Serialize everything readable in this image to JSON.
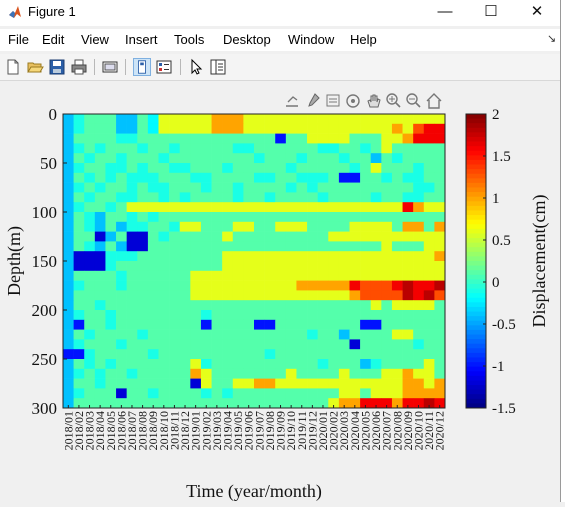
{
  "window": {
    "title": "Figure 1",
    "minimize_icon": "minimize-icon",
    "maximize_icon": "maximize-icon",
    "close_icon": "close-icon"
  },
  "menu": [
    "File",
    "Edit",
    "View",
    "Insert",
    "Tools",
    "Desktop",
    "Window",
    "Help"
  ],
  "toolbar": [
    "new-figure-icon",
    "open-file-icon",
    "save-icon",
    "print-icon",
    "link-plot-icon",
    "plot-tools-on-icon",
    "plot-tools-off-icon",
    "pointer-icon",
    "property-inspector-icon"
  ],
  "axes_toolbar": [
    "export-icon",
    "brush-icon",
    "data-tips-icon",
    "rotate-3d-icon",
    "pan-icon",
    "zoom-in-icon",
    "zoom-out-icon",
    "home-icon"
  ],
  "chart_data": {
    "type": "heatmap",
    "xlabel": "Time (year/month)",
    "ylabel": "Depth(m)",
    "colorbar_label": "Displacement(cm)",
    "colormap": "jet",
    "clim": [
      -1.5,
      2
    ],
    "colorbar_ticks": [
      2,
      1.5,
      1,
      0.5,
      0,
      -0.5,
      -1,
      -1.5
    ],
    "y_ticks": [
      0,
      50,
      100,
      150,
      200,
      250,
      300
    ],
    "ylim": [
      0,
      300
    ],
    "x_tick_labels": [
      "2018/01",
      "2018/02",
      "2018/03",
      "2018/04",
      "2018/05",
      "2018/06",
      "2018/07",
      "2018/08",
      "2018/09",
      "2018/10",
      "2018/11",
      "2018/12",
      "2019/01",
      "2019/02",
      "2019/03",
      "2019/04",
      "2019/05",
      "2019/06",
      "2019/07",
      "2019/08",
      "2019/09",
      "2019/10",
      "2019/11",
      "2019/12",
      "2020/01",
      "2020/02",
      "2020/03",
      "2020/04",
      "2020/05",
      "2020/06",
      "2020/07",
      "2020/08",
      "2020/09",
      "2020/10",
      "2020/11",
      "2020/12"
    ],
    "depths": [
      0,
      10,
      20,
      30,
      40,
      50,
      60,
      70,
      80,
      90,
      100,
      110,
      120,
      130,
      140,
      150,
      160,
      170,
      180,
      190,
      200,
      210,
      220,
      230,
      240,
      250,
      260,
      270,
      280,
      290
    ],
    "values": [
      [
        -0.4,
        -0.1,
        0.1,
        0.1,
        0.1,
        -0.4,
        -0.4,
        0.1,
        -0.2,
        0.6,
        0.6,
        0.6,
        0.6,
        0.6,
        1.0,
        1.0,
        1.0,
        0.6,
        0.6,
        0.6,
        0.6,
        0.6,
        0.6,
        0.6,
        0.6,
        0.6,
        0.6,
        0.6,
        0.6,
        0.6,
        0.6,
        0.6,
        0.6,
        0.6,
        0.6,
        0.6
      ],
      [
        -0.4,
        -0.1,
        0.1,
        0.1,
        0.1,
        -0.4,
        -0.4,
        0.1,
        -0.2,
        0.6,
        0.6,
        0.6,
        0.6,
        0.6,
        1.0,
        1.0,
        1.0,
        0.6,
        0.6,
        0.6,
        0.6,
        0.6,
        0.6,
        0.6,
        0.6,
        0.6,
        0.6,
        0.6,
        0.6,
        0.6,
        0.6,
        1.0,
        0.6,
        1.3,
        1.6,
        1.6
      ],
      [
        -0.4,
        0.1,
        0.1,
        0.1,
        0.1,
        -0.1,
        -0.1,
        0.1,
        0.1,
        0.1,
        0.1,
        0.1,
        0.1,
        0.1,
        0.1,
        0.1,
        0.1,
        0.1,
        0.1,
        0.1,
        -1.0,
        0.1,
        0.1,
        0.6,
        0.6,
        0.6,
        0.6,
        0.1,
        0.1,
        0.1,
        0.6,
        0.6,
        1.0,
        1.6,
        1.6,
        1.6
      ],
      [
        -0.4,
        -0.1,
        0.1,
        -0.1,
        0.1,
        0.1,
        0.1,
        -0.1,
        0.1,
        0.1,
        -0.1,
        0.1,
        0.1,
        0.1,
        0.1,
        0.1,
        -0.1,
        -0.1,
        0.1,
        0.1,
        0.1,
        0.1,
        0.1,
        0.1,
        -0.1,
        -0.1,
        0.1,
        0.1,
        -0.1,
        0.1,
        0.6,
        0.1,
        0.1,
        0.1,
        0.1,
        0.1
      ],
      [
        -0.4,
        0.1,
        -0.1,
        0.1,
        0.1,
        -0.1,
        0.1,
        0.1,
        0.1,
        -0.1,
        0.1,
        0.1,
        0.1,
        0.1,
        0.1,
        0.1,
        0.1,
        0.1,
        -0.1,
        0.1,
        0.1,
        0.1,
        -0.1,
        0.1,
        0.1,
        0.1,
        -0.1,
        0.1,
        0.1,
        -0.4,
        0.1,
        -0.1,
        0.1,
        0.1,
        0.1,
        0.1
      ],
      [
        -0.4,
        -0.1,
        0.1,
        0.1,
        -0.1,
        -0.1,
        0.1,
        -0.1,
        0.1,
        0.1,
        -0.1,
        -0.1,
        0.1,
        0.1,
        0.1,
        -0.1,
        0.1,
        0.1,
        0.1,
        0.1,
        0.1,
        -0.1,
        0.1,
        0.1,
        0.1,
        0.1,
        0.1,
        -0.1,
        0.1,
        0.6,
        0.1,
        0.1,
        0.1,
        -0.1,
        0.1,
        0.1
      ],
      [
        -0.4,
        0.1,
        -0.1,
        0.1,
        -0.1,
        0.1,
        -0.1,
        -0.1,
        -0.1,
        0.1,
        0.1,
        0.1,
        -0.1,
        -0.1,
        0.1,
        0.1,
        0.1,
        0.1,
        -0.1,
        -0.1,
        0.1,
        0.1,
        -0.1,
        -0.1,
        -0.1,
        0.1,
        -1.0,
        -1.0,
        0.1,
        0.1,
        -0.1,
        0.1,
        -0.1,
        -0.1,
        0.1,
        0.1
      ],
      [
        -0.4,
        -0.1,
        0.1,
        -0.1,
        0.1,
        0.1,
        -0.1,
        0.1,
        -0.1,
        -0.1,
        0.1,
        0.1,
        0.1,
        -0.1,
        0.1,
        0.1,
        -0.1,
        0.1,
        0.1,
        0.1,
        0.1,
        -0.1,
        0.1,
        -0.1,
        0.1,
        0.1,
        0.1,
        0.1,
        0.1,
        0.1,
        0.1,
        0.1,
        0.1,
        -0.1,
        -0.1,
        0.1
      ],
      [
        -0.4,
        0.1,
        -0.1,
        0.1,
        0.1,
        -0.1,
        -0.1,
        0.1,
        0.1,
        -0.1,
        0.1,
        -0.1,
        0.1,
        0.1,
        0.1,
        0.1,
        -0.1,
        0.1,
        0.1,
        -0.1,
        0.1,
        0.1,
        0.1,
        0.1,
        -0.1,
        0.1,
        0.1,
        0.1,
        0.1,
        -0.1,
        0.1,
        0.1,
        -0.1,
        -0.1,
        0.1,
        0.1
      ],
      [
        -0.4,
        -0.1,
        0.1,
        0.1,
        -0.1,
        0.1,
        0.6,
        0.6,
        0.6,
        0.6,
        0.6,
        0.6,
        0.6,
        0.6,
        0.6,
        0.6,
        0.6,
        0.6,
        0.6,
        0.6,
        0.6,
        0.6,
        0.6,
        0.6,
        0.6,
        0.6,
        0.6,
        0.6,
        0.6,
        0.6,
        0.6,
        0.6,
        1.6,
        1.0,
        0.6,
        0.6
      ],
      [
        -0.4,
        0.1,
        -0.1,
        -0.4,
        0.1,
        0.1,
        -0.1,
        0.1,
        -0.1,
        0.1,
        0.1,
        0.1,
        0.1,
        0.1,
        0.1,
        0.1,
        0.1,
        0.1,
        0.1,
        0.1,
        0.1,
        0.1,
        0.1,
        0.1,
        0.1,
        0.1,
        0.1,
        0.1,
        0.1,
        0.1,
        0.1,
        0.1,
        0.1,
        0.1,
        0.1,
        0.1
      ],
      [
        -0.4,
        0.1,
        -0.1,
        -0.4,
        0.1,
        -0.4,
        -0.1,
        -0.1,
        0.1,
        0.1,
        -0.1,
        0.6,
        0.6,
        0.1,
        0.1,
        0.1,
        0.6,
        0.6,
        0.1,
        0.1,
        0.6,
        0.6,
        0.6,
        0.1,
        0.1,
        0.1,
        0.1,
        0.6,
        0.6,
        0.6,
        0.6,
        0.1,
        1.0,
        1.0,
        0.1,
        1.0
      ],
      [
        -0.4,
        0.1,
        0.1,
        -1.2,
        -0.4,
        0.1,
        -1.2,
        -1.2,
        0.1,
        -0.1,
        0.1,
        0.1,
        0.1,
        0.1,
        0.1,
        0.6,
        0.1,
        0.1,
        0.1,
        0.1,
        0.1,
        0.1,
        0.1,
        0.1,
        0.1,
        0.6,
        0.6,
        0.6,
        0.6,
        0.6,
        0.6,
        0.6,
        0.6,
        0.6,
        0.6,
        0.6
      ],
      [
        -0.4,
        0.1,
        -0.1,
        -0.4,
        0.1,
        -0.4,
        -1.2,
        -1.2,
        0.1,
        0.1,
        0.1,
        0.1,
        0.1,
        0.1,
        0.1,
        0.1,
        0.1,
        0.1,
        0.1,
        0.1,
        0.1,
        0.1,
        0.1,
        0.1,
        0.1,
        0.1,
        0.1,
        0.1,
        0.1,
        0.1,
        0.6,
        0.1,
        0.1,
        0.1,
        0.6,
        0.6
      ],
      [
        -0.4,
        -1.2,
        -1.2,
        -1.2,
        -0.1,
        -0.1,
        -0.1,
        0.1,
        0.1,
        0.1,
        0.1,
        0.1,
        0.1,
        0.1,
        0.1,
        0.6,
        0.6,
        0.6,
        0.6,
        0.6,
        0.6,
        0.6,
        0.6,
        0.6,
        0.6,
        0.6,
        0.6,
        0.6,
        0.6,
        0.6,
        0.6,
        0.6,
        0.6,
        0.6,
        0.6,
        1.0
      ],
      [
        -0.4,
        -1.2,
        -1.2,
        -1.2,
        -0.1,
        0.1,
        0.1,
        0.1,
        0.1,
        0.1,
        0.1,
        0.1,
        0.1,
        0.1,
        0.1,
        0.6,
        0.6,
        0.6,
        0.6,
        0.6,
        0.6,
        0.6,
        0.6,
        0.6,
        0.6,
        0.6,
        0.6,
        0.6,
        0.6,
        0.6,
        0.6,
        0.6,
        0.6,
        0.6,
        0.6,
        0.6
      ],
      [
        -0.4,
        0.1,
        0.1,
        0.1,
        0.1,
        -0.1,
        0.1,
        0.1,
        0.1,
        0.1,
        0.1,
        0.1,
        0.6,
        0.6,
        0.6,
        0.6,
        0.6,
        0.6,
        0.6,
        0.6,
        0.6,
        0.6,
        0.6,
        0.6,
        0.6,
        0.6,
        0.6,
        0.6,
        0.6,
        0.6,
        0.6,
        0.6,
        0.6,
        0.6,
        0.6,
        0.6
      ],
      [
        -0.4,
        -0.1,
        0.1,
        0.1,
        0.1,
        -0.1,
        0.1,
        0.1,
        0.1,
        0.1,
        0.1,
        0.1,
        0.6,
        0.6,
        0.6,
        0.6,
        0.6,
        0.6,
        0.6,
        0.6,
        0.6,
        0.6,
        1.0,
        1.0,
        1.0,
        1.0,
        1.0,
        1.6,
        1.3,
        1.3,
        1.3,
        1.6,
        1.8,
        1.6,
        1.6,
        1.8
      ],
      [
        -0.4,
        0.1,
        0.1,
        0.1,
        0.1,
        0.1,
        0.1,
        0.1,
        0.1,
        0.1,
        0.1,
        0.1,
        0.6,
        0.6,
        0.6,
        0.6,
        0.6,
        0.6,
        0.6,
        0.6,
        0.6,
        0.6,
        0.6,
        0.6,
        0.6,
        0.6,
        0.6,
        1.0,
        1.3,
        1.3,
        1.3,
        1.3,
        1.8,
        1.6,
        1.8,
        1.3
      ],
      [
        -0.4,
        0.1,
        0.1,
        -0.1,
        0.1,
        0.1,
        0.1,
        0.1,
        0.1,
        0.1,
        0.1,
        0.1,
        0.1,
        0.1,
        0.1,
        0.1,
        0.1,
        0.1,
        0.1,
        0.1,
        0.1,
        0.1,
        0.1,
        0.1,
        0.1,
        0.1,
        0.1,
        0.1,
        0.1,
        0.6,
        0.1,
        0.6,
        0.6,
        0.6,
        0.6,
        0.1
      ],
      [
        -0.4,
        -0.1,
        0.1,
        0.1,
        -0.1,
        0.1,
        0.1,
        0.1,
        0.1,
        0.1,
        0.1,
        0.1,
        0.1,
        -0.1,
        0.1,
        0.1,
        0.1,
        0.1,
        0.1,
        0.1,
        0.1,
        0.1,
        0.1,
        0.1,
        0.1,
        0.1,
        0.1,
        0.1,
        0.1,
        0.1,
        0.1,
        0.1,
        0.1,
        0.1,
        0.1,
        0.1
      ],
      [
        -0.4,
        -1.0,
        0.1,
        0.1,
        -0.1,
        0.1,
        0.1,
        0.1,
        0.1,
        0.1,
        0.1,
        0.1,
        0.1,
        -1.0,
        0.1,
        0.1,
        0.1,
        0.1,
        -1.0,
        -1.0,
        0.1,
        0.1,
        0.1,
        0.1,
        0.1,
        0.1,
        0.1,
        0.1,
        -1.0,
        -1.0,
        0.1,
        0.1,
        0.1,
        0.1,
        0.1,
        0.1
      ],
      [
        -0.4,
        0.1,
        -0.1,
        0.1,
        0.1,
        0.1,
        0.1,
        -0.1,
        0.1,
        0.1,
        0.1,
        0.1,
        0.1,
        0.1,
        0.1,
        0.1,
        0.1,
        0.1,
        0.1,
        0.1,
        0.1,
        0.1,
        0.1,
        -0.1,
        0.1,
        0.1,
        -0.4,
        0.1,
        0.1,
        0.1,
        0.1,
        0.6,
        0.6,
        0.1,
        0.1,
        0.1
      ],
      [
        -0.4,
        -0.1,
        0.1,
        0.1,
        0.1,
        -0.1,
        0.1,
        0.1,
        0.1,
        0.1,
        0.1,
        0.1,
        0.1,
        0.1,
        0.1,
        0.1,
        0.1,
        0.1,
        0.1,
        0.1,
        0.1,
        0.1,
        0.1,
        0.1,
        0.1,
        0.1,
        0.1,
        -1.2,
        0.1,
        0.1,
        0.1,
        0.1,
        0.1,
        -0.1,
        0.1,
        0.1
      ],
      [
        -1.0,
        -1.0,
        -0.1,
        0.1,
        0.1,
        0.1,
        0.1,
        0.1,
        -0.1,
        0.1,
        0.1,
        0.1,
        0.1,
        0.1,
        0.1,
        0.1,
        0.1,
        0.1,
        0.1,
        -0.1,
        0.1,
        0.1,
        0.1,
        0.1,
        0.1,
        0.1,
        0.1,
        0.1,
        0.1,
        0.1,
        0.1,
        0.1,
        0.1,
        0.1,
        0.1,
        0.1
      ],
      [
        -0.4,
        0.1,
        -0.1,
        0.1,
        -0.1,
        0.1,
        0.1,
        0.1,
        0.1,
        0.1,
        0.1,
        0.1,
        0.6,
        -0.1,
        0.1,
        0.1,
        0.1,
        0.1,
        0.1,
        0.1,
        0.1,
        0.1,
        0.1,
        0.1,
        -0.1,
        0.1,
        0.1,
        0.1,
        -0.4,
        -0.1,
        0.1,
        0.1,
        0.1,
        0.1,
        0.6,
        0.1
      ],
      [
        -0.4,
        -0.1,
        0.1,
        -0.1,
        0.1,
        0.1,
        -0.1,
        0.1,
        0.1,
        0.1,
        0.1,
        0.1,
        1.0,
        0.6,
        0.1,
        0.1,
        0.1,
        0.1,
        0.1,
        0.1,
        0.1,
        0.6,
        0.1,
        0.1,
        0.1,
        0.1,
        0.6,
        0.1,
        0.1,
        0.1,
        0.6,
        0.6,
        1.0,
        0.6,
        0.6,
        0.1
      ],
      [
        -0.4,
        0.1,
        0.1,
        -0.1,
        0.1,
        0.1,
        0.1,
        0.1,
        0.1,
        0.1,
        0.1,
        0.1,
        -1.2,
        0.6,
        0.1,
        0.1,
        0.6,
        0.6,
        1.0,
        1.0,
        0.6,
        0.6,
        0.6,
        0.6,
        0.6,
        0.6,
        0.6,
        0.6,
        0.6,
        0.6,
        0.6,
        0.6,
        1.0,
        1.0,
        0.6,
        1.0
      ],
      [
        -0.4,
        -0.1,
        0.1,
        0.1,
        0.1,
        -1.2,
        0.1,
        0.1,
        -0.1,
        0.1,
        0.1,
        0.1,
        0.1,
        -0.1,
        0.1,
        -0.1,
        0.1,
        0.1,
        0.1,
        0.1,
        0.1,
        0.1,
        0.1,
        0.1,
        0.1,
        0.1,
        0.6,
        0.6,
        0.1,
        0.6,
        0.6,
        0.6,
        1.0,
        1.0,
        1.0,
        1.0
      ],
      [
        -0.4,
        0.1,
        0.1,
        0.1,
        0.1,
        0.1,
        0.1,
        0.1,
        0.1,
        0.1,
        0.1,
        0.1,
        0.1,
        0.1,
        0.1,
        0.1,
        0.1,
        0.1,
        0.1,
        0.1,
        0.1,
        0.1,
        0.1,
        0.1,
        0.1,
        0.6,
        1.0,
        1.0,
        1.6,
        1.6,
        1.6,
        1.0,
        1.6,
        1.6,
        1.8,
        1.6
      ]
    ]
  }
}
